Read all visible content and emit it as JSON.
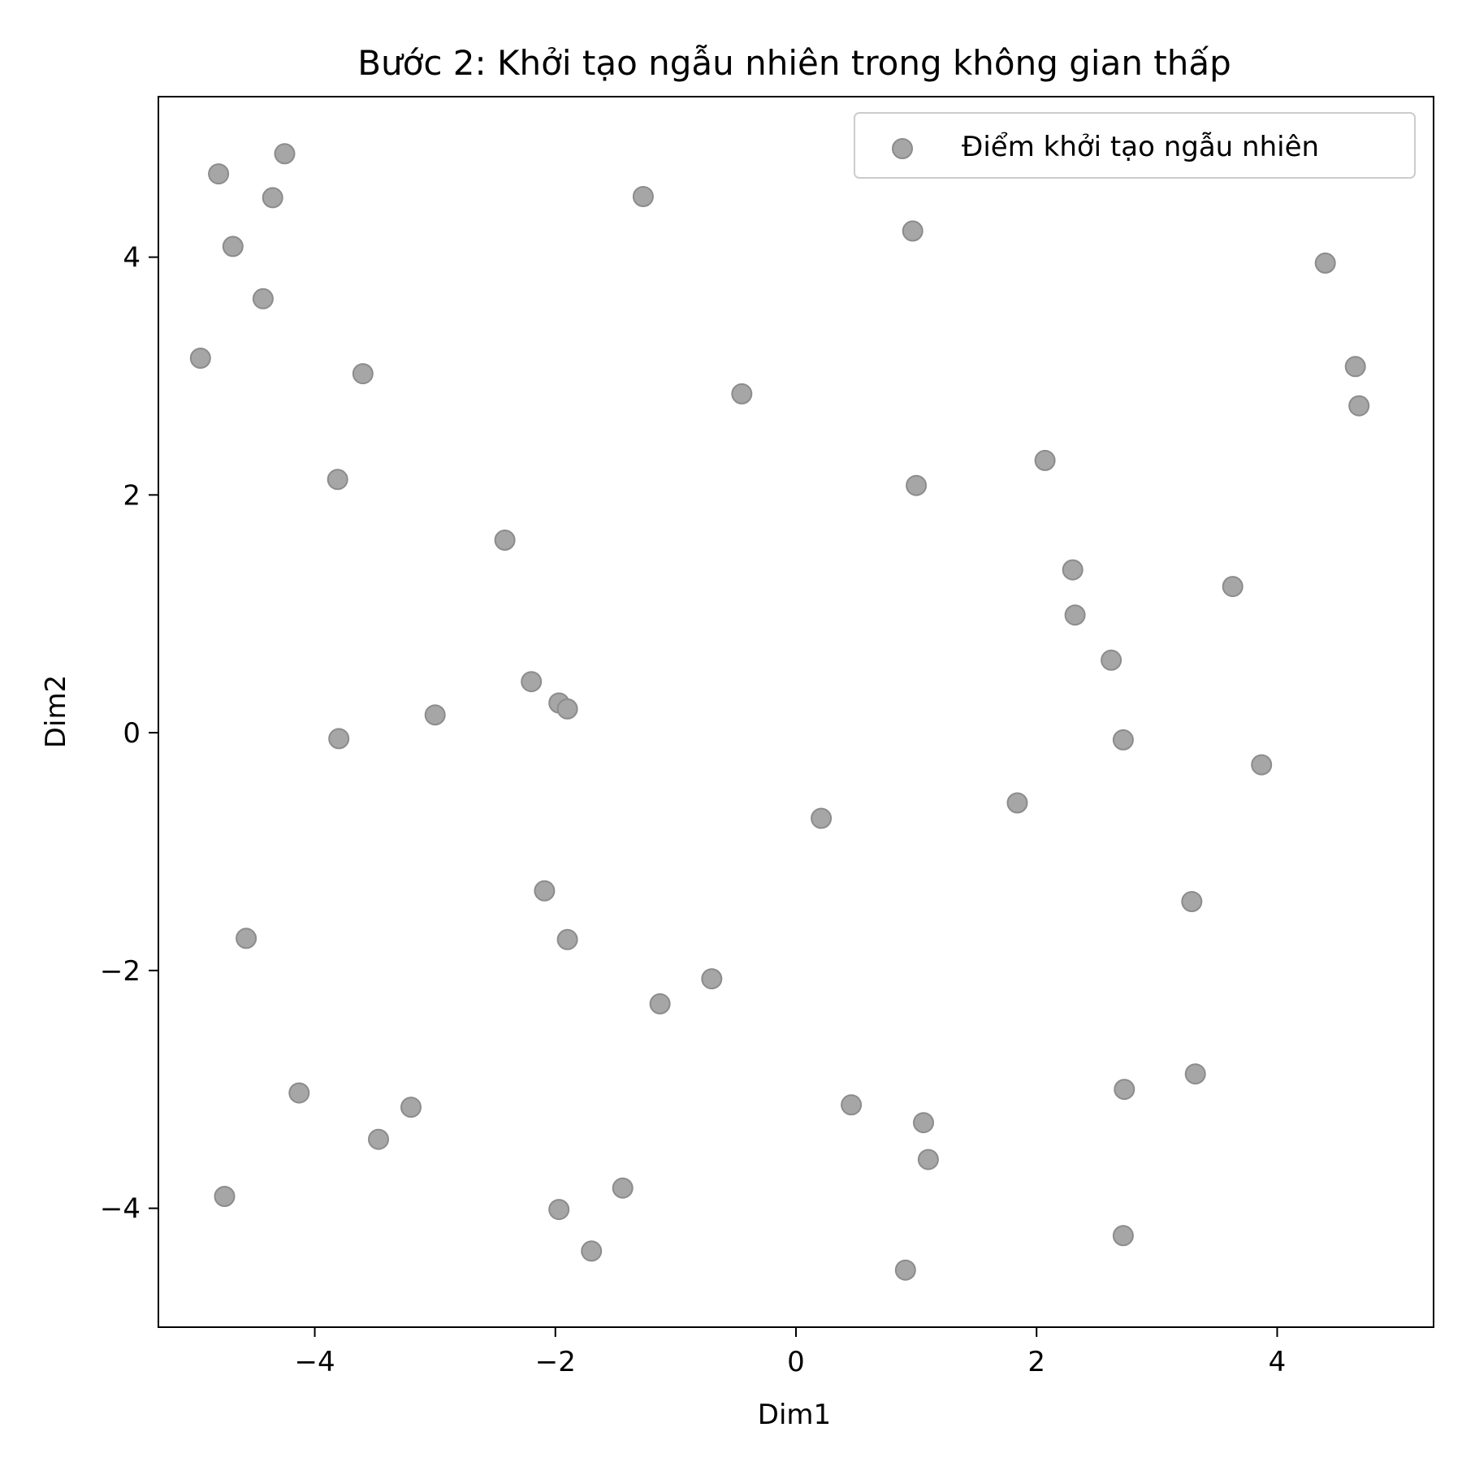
{
  "chart_data": {
    "type": "scatter",
    "title": "Bước 2: Khởi tạo ngẫu nhiên trong không gian thấp",
    "xlabel": "Dim1",
    "ylabel": "Dim2",
    "xlim": [
      -5.3,
      5.3
    ],
    "ylim": [
      -5.0,
      5.35
    ],
    "xticks": [
      -4,
      -2,
      0,
      2,
      4
    ],
    "yticks": [
      -4,
      -2,
      0,
      2,
      4
    ],
    "grid": false,
    "legend_position": "top-right",
    "colors": {
      "marker": "#a6a6a6",
      "marker_edge": "#8c8c8c",
      "axes": "#000000"
    },
    "series": [
      {
        "name": "Điểm khởi tạo ngẫu nhiên",
        "points": [
          {
            "x": -4.8,
            "y": 4.7
          },
          {
            "x": -4.25,
            "y": 4.87
          },
          {
            "x": -4.35,
            "y": 4.5
          },
          {
            "x": -4.68,
            "y": 4.09
          },
          {
            "x": -4.43,
            "y": 3.65
          },
          {
            "x": -4.95,
            "y": 3.15
          },
          {
            "x": -3.6,
            "y": 3.02
          },
          {
            "x": -3.81,
            "y": 2.13
          },
          {
            "x": -1.27,
            "y": 4.51
          },
          {
            "x": 0.97,
            "y": 4.22
          },
          {
            "x": 4.4,
            "y": 3.95
          },
          {
            "x": 4.65,
            "y": 3.08
          },
          {
            "x": 4.68,
            "y": 2.75
          },
          {
            "x": -0.45,
            "y": 2.85
          },
          {
            "x": 2.07,
            "y": 2.29
          },
          {
            "x": 1.0,
            "y": 2.08
          },
          {
            "x": -2.42,
            "y": 1.62
          },
          {
            "x": 2.3,
            "y": 1.37
          },
          {
            "x": 3.63,
            "y": 1.23
          },
          {
            "x": 2.32,
            "y": 0.99
          },
          {
            "x": 2.62,
            "y": 0.61
          },
          {
            "x": -2.2,
            "y": 0.43
          },
          {
            "x": -1.97,
            "y": 0.25
          },
          {
            "x": -1.9,
            "y": 0.2
          },
          {
            "x": -3.0,
            "y": 0.15
          },
          {
            "x": -3.8,
            "y": -0.05
          },
          {
            "x": 2.72,
            "y": -0.06
          },
          {
            "x": 3.87,
            "y": -0.27
          },
          {
            "x": 1.84,
            "y": -0.59
          },
          {
            "x": 0.21,
            "y": -0.72
          },
          {
            "x": -2.09,
            "y": -1.33
          },
          {
            "x": 3.29,
            "y": -1.42
          },
          {
            "x": -4.57,
            "y": -1.73
          },
          {
            "x": -1.9,
            "y": -1.74
          },
          {
            "x": -0.7,
            "y": -2.07
          },
          {
            "x": -1.13,
            "y": -2.28
          },
          {
            "x": -4.13,
            "y": -3.03
          },
          {
            "x": -3.2,
            "y": -3.15
          },
          {
            "x": 0.46,
            "y": -3.13
          },
          {
            "x": 3.32,
            "y": -2.87
          },
          {
            "x": 2.73,
            "y": -3.0
          },
          {
            "x": 1.06,
            "y": -3.28
          },
          {
            "x": -3.47,
            "y": -3.42
          },
          {
            "x": 1.1,
            "y": -3.59
          },
          {
            "x": -1.44,
            "y": -3.83
          },
          {
            "x": -4.75,
            "y": -3.9
          },
          {
            "x": -1.97,
            "y": -4.01
          },
          {
            "x": -1.7,
            "y": -4.36
          },
          {
            "x": 2.72,
            "y": -4.23
          },
          {
            "x": 0.91,
            "y": -4.52
          }
        ]
      }
    ]
  }
}
